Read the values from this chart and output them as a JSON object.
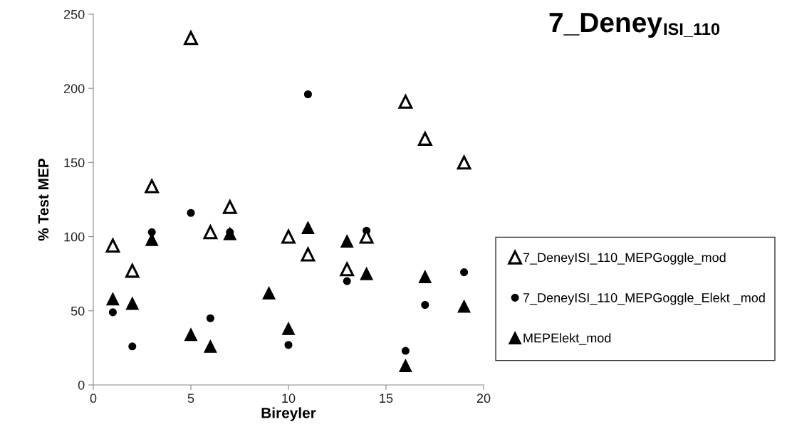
{
  "chart_data": {
    "type": "scatter",
    "title": "7_Deney$_{ISI_110}$",
    "xlabel": "Bireyler",
    "ylabel": "% Test MEP",
    "xlim": [
      0,
      20
    ],
    "xticks": [
      0,
      5,
      10,
      15,
      20
    ],
    "ylim": [
      0,
      250
    ],
    "yticks": [
      0,
      50,
      100,
      150,
      200,
      250
    ],
    "grid": false,
    "legend": "right",
    "series": [
      {
        "name": "7_DeneyISI_110_MEPGoggle_mod",
        "color": "#000000",
        "marker": "triangle_open",
        "x": [
          1,
          2,
          3,
          5,
          6,
          7,
          10,
          11,
          13,
          14,
          16,
          17,
          19
        ],
        "values": [
          94,
          77,
          134,
          234,
          103,
          120,
          100,
          88,
          78,
          100,
          191,
          166,
          150
        ]
      },
      {
        "name": "7_DeneyISI_110_MEPGoggle_Elekt _mod",
        "color": "#000000",
        "marker": "circle",
        "x": [
          1,
          2,
          3,
          5,
          6,
          7,
          10,
          11,
          13,
          14,
          16,
          17,
          19
        ],
        "values": [
          49,
          26,
          103,
          116,
          45,
          103,
          27,
          196,
          70,
          104,
          23,
          54,
          76
        ]
      },
      {
        "name": "MEPElekt_mod",
        "color": "#000000",
        "marker": "triangle",
        "x": [
          1,
          2,
          3,
          5,
          6,
          7,
          9,
          10,
          11,
          13,
          14,
          16,
          17,
          19
        ],
        "values": [
          58,
          55,
          98,
          34,
          26,
          102,
          62,
          38,
          106,
          97,
          75,
          13,
          73,
          53
        ]
      }
    ]
  }
}
